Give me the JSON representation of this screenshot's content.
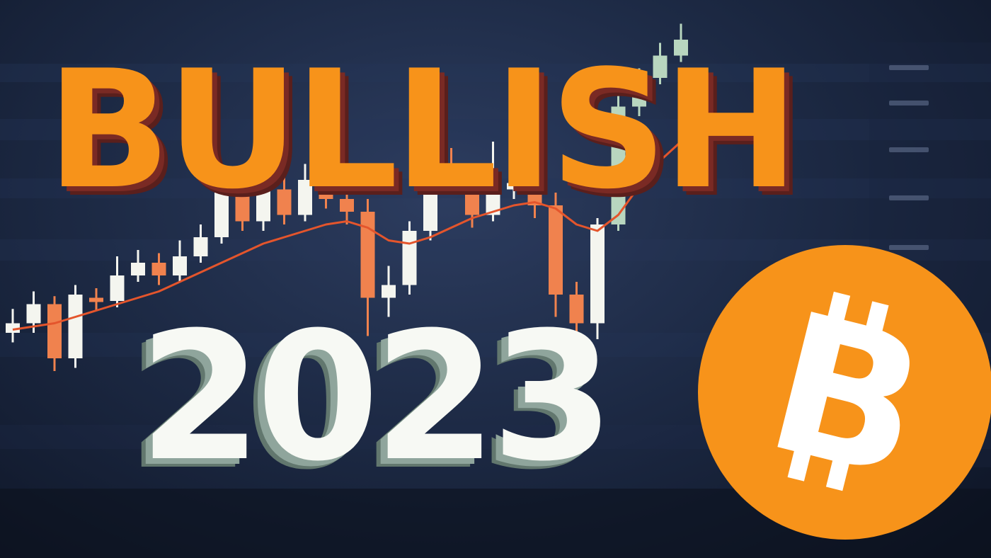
{
  "headline": {
    "title": "BULLISH",
    "year": "2023"
  },
  "logo": {
    "glyph": "B",
    "shape": "bitcoin-logo"
  },
  "colors": {
    "bitcoin_orange": "#f7931a",
    "bearish_candle": "#f0824e",
    "bullish_candle": "#f4f5ef",
    "late_bullish_candle": "#b8d6bf",
    "moving_average": "#e4552c",
    "background": "#1d2a45"
  },
  "background_chart": {
    "type": "candlestick",
    "candles": [
      {
        "o": 40,
        "c": 46,
        "h": 55,
        "l": 34
      },
      {
        "o": 46,
        "c": 58,
        "h": 66,
        "l": 40
      },
      {
        "o": 58,
        "c": 24,
        "h": 63,
        "l": 16
      },
      {
        "o": 24,
        "c": 64,
        "h": 70,
        "l": 18
      },
      {
        "o": 62,
        "c": 60,
        "h": 68,
        "l": 54
      },
      {
        "o": 60,
        "c": 76,
        "h": 88,
        "l": 56
      },
      {
        "o": 76,
        "c": 84,
        "h": 92,
        "l": 72
      },
      {
        "o": 84,
        "c": 76,
        "h": 90,
        "l": 70
      },
      {
        "o": 76,
        "c": 88,
        "h": 98,
        "l": 72
      },
      {
        "o": 88,
        "c": 100,
        "h": 108,
        "l": 84
      },
      {
        "o": 100,
        "c": 128,
        "h": 134,
        "l": 96
      },
      {
        "o": 128,
        "c": 110,
        "h": 138,
        "l": 104
      },
      {
        "o": 110,
        "c": 130,
        "h": 140,
        "l": 104
      },
      {
        "o": 130,
        "c": 114,
        "h": 138,
        "l": 108
      },
      {
        "o": 114,
        "c": 136,
        "h": 146,
        "l": 110
      },
      {
        "o": 136,
        "c": 124,
        "h": 160,
        "l": 118
      },
      {
        "o": 124,
        "c": 116,
        "h": 132,
        "l": 108
      },
      {
        "o": 116,
        "c": 62,
        "h": 124,
        "l": 38
      },
      {
        "o": 62,
        "c": 70,
        "h": 82,
        "l": 50
      },
      {
        "o": 70,
        "c": 104,
        "h": 110,
        "l": 64
      },
      {
        "o": 104,
        "c": 146,
        "h": 152,
        "l": 98
      },
      {
        "o": 146,
        "c": 138,
        "h": 156,
        "l": 132
      },
      {
        "o": 138,
        "c": 114,
        "h": 146,
        "l": 106
      },
      {
        "o": 114,
        "c": 130,
        "h": 160,
        "l": 110
      },
      {
        "o": 130,
        "c": 134,
        "h": 156,
        "l": 124
      },
      {
        "o": 134,
        "c": 120,
        "h": 140,
        "l": 112
      },
      {
        "o": 120,
        "c": 64,
        "h": 128,
        "l": 50
      },
      {
        "o": 64,
        "c": 46,
        "h": 72,
        "l": 32
      },
      {
        "o": 46,
        "c": 108,
        "h": 112,
        "l": 36
      },
      {
        "o": 108,
        "c": 182,
        "h": 190,
        "l": 104
      },
      {
        "o": 182,
        "c": 200,
        "h": 206,
        "l": 176
      },
      {
        "o": 200,
        "c": 214,
        "h": 222,
        "l": 196
      },
      {
        "o": 214,
        "c": 224,
        "h": 234,
        "l": 210
      }
    ],
    "moving_average": [
      42,
      44,
      46,
      50,
      54,
      58,
      62,
      66,
      72,
      78,
      84,
      90,
      96,
      100,
      104,
      108,
      110,
      106,
      98,
      96,
      100,
      106,
      112,
      116,
      120,
      122,
      118,
      108,
      104,
      114,
      132,
      148,
      160
    ]
  }
}
